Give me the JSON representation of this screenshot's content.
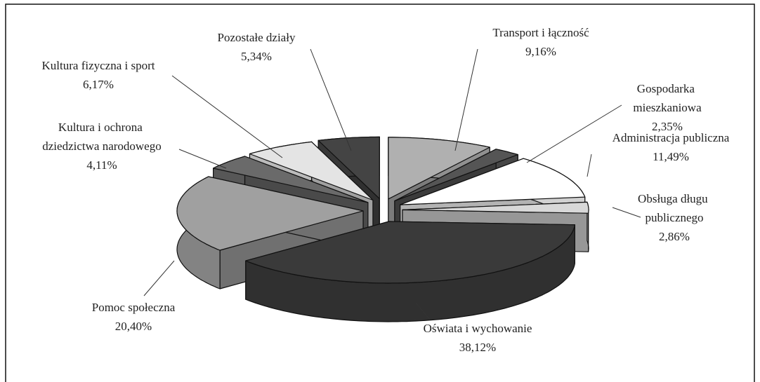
{
  "chart_data": {
    "type": "pie3d",
    "categories": [
      "Transport i łączność",
      "Gospodarka mieszkaniowa",
      "Administracja publiczna",
      "Obsługa długu publicznego",
      "Oświata i wychowanie",
      "Pomoc społeczna",
      "Kultura i ochrona dziedzictwa narodowego",
      "Kultura fizyczna i sport",
      "Pozostałe działy"
    ],
    "values": [
      9.16,
      2.35,
      11.49,
      2.86,
      38.12,
      20.4,
      4.11,
      6.17,
      5.34
    ],
    "value_labels": [
      "9,16%",
      "2,35%",
      "11,49%",
      "2,86%",
      "38,12%",
      "20,40%",
      "4,11%",
      "6,17%",
      "5,34%"
    ],
    "colors": [
      "#b0b0b0",
      "#555555",
      "#ffffff",
      "#d8d8d8",
      "#3a3a3a",
      "#a0a0a0",
      "#6a6a6a",
      "#e4e4e4",
      "#444444"
    ]
  }
}
